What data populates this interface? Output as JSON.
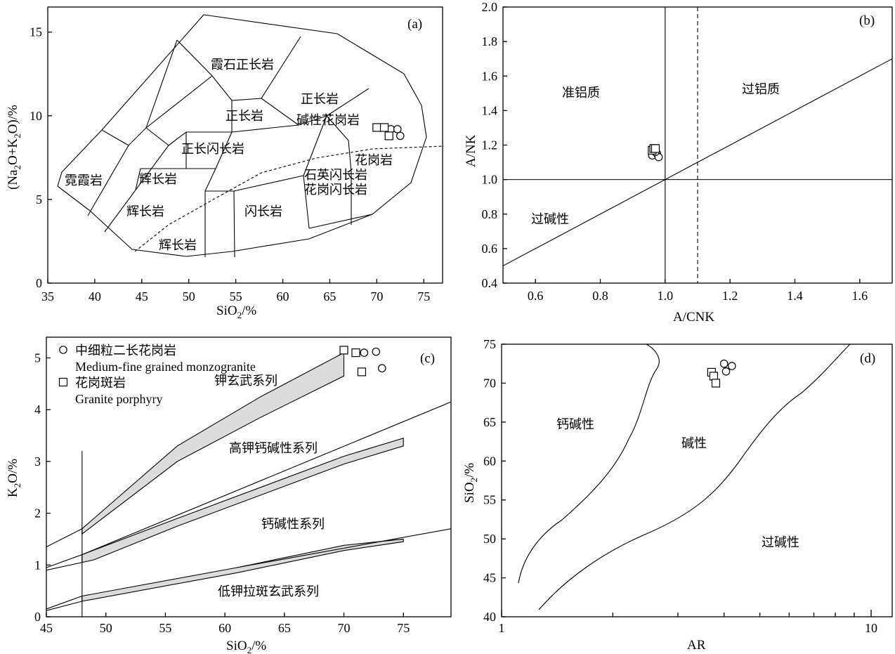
{
  "panels": {
    "a": {
      "panel_label": "(a)",
      "xlabel": "SiO2/%",
      "ylabel": "(Na2O+K2O)/%",
      "xticks": [
        "35",
        "40",
        "45",
        "50",
        "55",
        "60",
        "65",
        "70",
        "75"
      ],
      "yticks": [
        "0",
        "5",
        "10",
        "15"
      ],
      "fields": [
        "霓霞岩",
        "辉长岩",
        "辉长岩",
        "辉长岩",
        "正长闪长岩",
        "正长岩",
        "霞石正长岩",
        "正长岩",
        "碱性花岗岩",
        "石英闪长岩",
        "花岗闪长岩",
        "闪长岩",
        "花岗岩"
      ]
    },
    "b": {
      "panel_label": "(b)",
      "xlabel": "A/CNK",
      "ylabel": "A/NK",
      "xticks": [
        "0.6",
        "0.8",
        "1.0",
        "1.2",
        "1.4",
        "1.6"
      ],
      "yticks": [
        "0.4",
        "0.6",
        "0.8",
        "1.0",
        "1.2",
        "1.4",
        "1.6",
        "1.8",
        "2.0"
      ],
      "fields": [
        "准铝质",
        "过铝质",
        "过碱性"
      ]
    },
    "c": {
      "panel_label": "(c)",
      "xlabel": "SiO2/%",
      "ylabel": "K2O/%",
      "xticks": [
        "45",
        "50",
        "55",
        "60",
        "65",
        "70",
        "75"
      ],
      "yticks": [
        "0",
        "1",
        "2",
        "3",
        "4",
        "5"
      ],
      "fields": [
        "钾玄武系列",
        "高钾钙碱性系列",
        "钙碱性系列",
        "低钾拉斑玄武系列"
      ],
      "legend": [
        {
          "cn": "中细粒二长花岗岩",
          "en": "Medium-fine grained monzogranite",
          "marker": "circle"
        },
        {
          "cn": "花岗斑岩",
          "en": "Granite porphyry",
          "marker": "square"
        }
      ]
    },
    "d": {
      "panel_label": "(d)",
      "xlabel": "AR",
      "ylabel": "SiO2/%",
      "xticks": [
        "1",
        "10"
      ],
      "yticks": [
        "40",
        "45",
        "50",
        "55",
        "60",
        "65",
        "70",
        "75"
      ],
      "fields": [
        "钙碱性",
        "碱性",
        "过碱性"
      ]
    }
  },
  "chart_data": [
    {
      "type": "scatter",
      "panel": "a",
      "xlabel": "SiO2/%",
      "ylabel": "(Na2O+K2O)/%",
      "xlim": [
        35,
        77
      ],
      "ylim": [
        0,
        16.5
      ],
      "series": [
        {
          "name": "Medium-fine grained monzogranite",
          "marker": "circle",
          "points": [
            [
              71.5,
              9.2
            ],
            [
              72.2,
              9.2
            ],
            [
              72.5,
              8.8
            ]
          ]
        },
        {
          "name": "Granite porphyry",
          "marker": "square",
          "points": [
            [
              70.0,
              9.3
            ],
            [
              70.8,
              9.3
            ],
            [
              71.3,
              8.8
            ]
          ]
        }
      ]
    },
    {
      "type": "scatter",
      "panel": "b",
      "xlabel": "A/CNK",
      "ylabel": "A/NK",
      "xlim": [
        0.5,
        1.7
      ],
      "ylim": [
        0.4,
        2.0
      ],
      "series": [
        {
          "name": "Medium-fine grained monzogranite",
          "marker": "circle",
          "points": [
            [
              0.96,
              1.14
            ],
            [
              0.975,
              1.15
            ],
            [
              0.98,
              1.13
            ],
            [
              0.97,
              1.16
            ]
          ]
        },
        {
          "name": "Granite porphyry",
          "marker": "square",
          "points": [
            [
              0.96,
              1.17
            ],
            [
              0.965,
              1.18
            ],
            [
              0.97,
              1.18
            ]
          ]
        }
      ]
    },
    {
      "type": "scatter",
      "panel": "c",
      "xlabel": "SiO2/%",
      "ylabel": "K2O/%",
      "xlim": [
        45,
        79
      ],
      "ylim": [
        0,
        5.4
      ],
      "series": [
        {
          "name": "Medium-fine grained monzogranite",
          "marker": "circle",
          "points": [
            [
              71.7,
              5.1
            ],
            [
              72.7,
              5.12
            ],
            [
              73.2,
              4.8
            ]
          ]
        },
        {
          "name": "Granite porphyry",
          "marker": "square",
          "points": [
            [
              70.0,
              5.15
            ],
            [
              71.0,
              5.1
            ],
            [
              71.5,
              4.73
            ]
          ]
        }
      ]
    },
    {
      "type": "scatter",
      "panel": "d",
      "xlabel": "AR",
      "ylabel": "SiO2/%",
      "xscale": "log",
      "xlim": [
        1,
        12
      ],
      "ylim": [
        40,
        75
      ],
      "series": [
        {
          "name": "Medium-fine grained monzogranite",
          "marker": "circle",
          "points": [
            [
              4.0,
              72.5
            ],
            [
              4.2,
              72.2
            ],
            [
              4.05,
              71.5
            ]
          ]
        },
        {
          "name": "Granite porphyry",
          "marker": "square",
          "points": [
            [
              3.7,
              71.4
            ],
            [
              3.75,
              70.9
            ],
            [
              3.8,
              70.0
            ]
          ]
        }
      ]
    }
  ]
}
